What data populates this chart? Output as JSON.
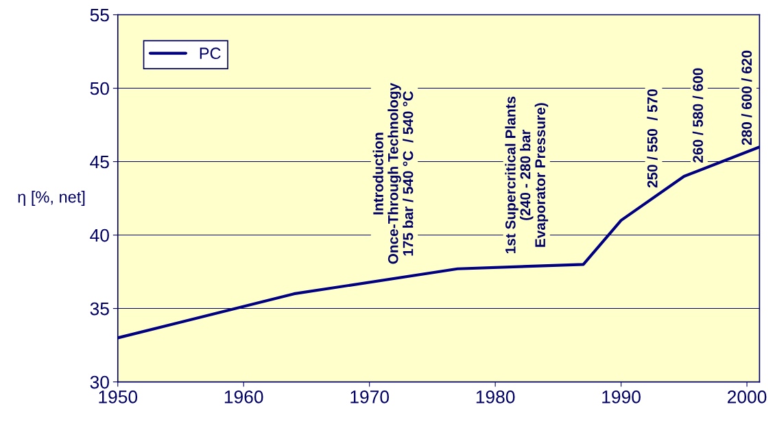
{
  "chart_data": {
    "type": "line",
    "ylabel": "η [%, net]",
    "x": [
      1950,
      1964,
      1977,
      1987,
      1990,
      1995,
      2001
    ],
    "series": [
      {
        "name": "PC",
        "color": "#000080",
        "values": [
          33,
          36,
          37.7,
          38,
          41,
          44,
          46
        ]
      }
    ],
    "xlim": [
      1950,
      2001
    ],
    "xticks": [
      1950,
      1960,
      1970,
      1980,
      1990,
      2000
    ],
    "ylim": [
      30,
      55
    ],
    "yticks": [
      30,
      35,
      40,
      45,
      50,
      55
    ],
    "grid": "y",
    "legend": "top left",
    "marker": "none",
    "line_style": "solid",
    "annotations": [
      "Introduction\nOnce-Through Technology\n175 bar / 540 °C  / 540 °C",
      "1st Supercritical Plants\n(240 - 280 bar\nEvaporator Pressure)",
      "250 / 550  / 570",
      "260 / 580 / 600",
      "280 / 600 / 620"
    ]
  }
}
